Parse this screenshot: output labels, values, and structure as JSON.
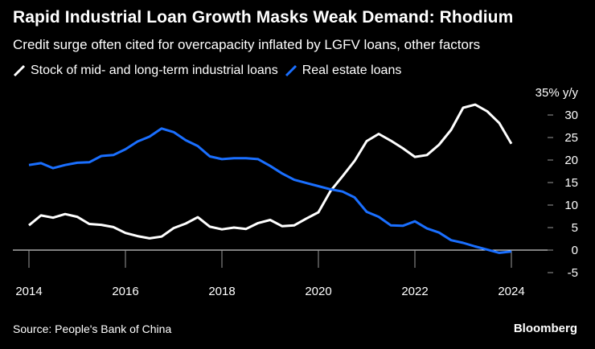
{
  "chart_data": {
    "type": "line",
    "title": "Rapid Industrial Loan Growth Masks Weak Demand: Rhodium",
    "subtitle": "Credit surge often cited for overcapacity inflated by LGFV loans, other factors",
    "ylabel_unit": "y/y",
    "y_unit_label": "35% y/y",
    "ylim": [
      -5,
      35
    ],
    "xlim": [
      2014,
      2024.6
    ],
    "y_ticks": [
      {
        "value": 35,
        "label": "35% y/y"
      },
      {
        "value": 30,
        "label": "30"
      },
      {
        "value": 25,
        "label": "25"
      },
      {
        "value": 20,
        "label": "20"
      },
      {
        "value": 15,
        "label": "15"
      },
      {
        "value": 10,
        "label": "10"
      },
      {
        "value": 5,
        "label": "5"
      },
      {
        "value": 0,
        "label": "0"
      },
      {
        "value": -5,
        "label": "-5"
      }
    ],
    "x_ticks": [
      {
        "value": 2014,
        "label": "2014"
      },
      {
        "value": 2016,
        "label": "2016"
      },
      {
        "value": 2018,
        "label": "2018"
      },
      {
        "value": 2020,
        "label": "2020"
      },
      {
        "value": 2022,
        "label": "2022"
      },
      {
        "value": 2024,
        "label": "2024"
      }
    ],
    "legend_placement": "top-left",
    "grid": false,
    "series": [
      {
        "name": "Stock of mid- and long-term industrial loans",
        "color": "#ffffff",
        "points": [
          [
            2014.0,
            5.5
          ],
          [
            2014.25,
            7.7
          ],
          [
            2014.5,
            7.2
          ],
          [
            2014.75,
            8.0
          ],
          [
            2015.0,
            7.4
          ],
          [
            2015.25,
            5.8
          ],
          [
            2015.5,
            5.6
          ],
          [
            2015.75,
            5.1
          ],
          [
            2016.0,
            3.8
          ],
          [
            2016.25,
            3.1
          ],
          [
            2016.5,
            2.6
          ],
          [
            2016.75,
            3.0
          ],
          [
            2017.0,
            4.9
          ],
          [
            2017.25,
            5.9
          ],
          [
            2017.5,
            7.3
          ],
          [
            2017.75,
            5.2
          ],
          [
            2018.0,
            4.6
          ],
          [
            2018.25,
            5.0
          ],
          [
            2018.5,
            4.7
          ],
          [
            2018.75,
            6.0
          ],
          [
            2019.0,
            6.7
          ],
          [
            2019.25,
            5.3
          ],
          [
            2019.5,
            5.5
          ],
          [
            2019.75,
            7.0
          ],
          [
            2020.0,
            8.4
          ],
          [
            2020.25,
            13.1
          ],
          [
            2020.5,
            16.4
          ],
          [
            2020.75,
            19.8
          ],
          [
            2021.0,
            24.2
          ],
          [
            2021.25,
            25.8
          ],
          [
            2021.5,
            24.3
          ],
          [
            2021.75,
            22.6
          ],
          [
            2022.0,
            20.7
          ],
          [
            2022.25,
            21.1
          ],
          [
            2022.5,
            23.4
          ],
          [
            2022.75,
            26.7
          ],
          [
            2023.0,
            31.6
          ],
          [
            2023.25,
            32.3
          ],
          [
            2023.5,
            30.8
          ],
          [
            2023.75,
            28.2
          ],
          [
            2024.0,
            23.6
          ]
        ]
      },
      {
        "name": "Real estate loans",
        "color": "#1a6fff",
        "points": [
          [
            2014.0,
            18.9
          ],
          [
            2014.25,
            19.3
          ],
          [
            2014.5,
            18.2
          ],
          [
            2014.75,
            18.9
          ],
          [
            2015.0,
            19.4
          ],
          [
            2015.25,
            19.5
          ],
          [
            2015.5,
            20.9
          ],
          [
            2015.75,
            21.1
          ],
          [
            2016.0,
            22.4
          ],
          [
            2016.25,
            24.1
          ],
          [
            2016.5,
            25.2
          ],
          [
            2016.75,
            27.0
          ],
          [
            2017.0,
            26.2
          ],
          [
            2017.25,
            24.4
          ],
          [
            2017.5,
            23.1
          ],
          [
            2017.75,
            20.8
          ],
          [
            2018.0,
            20.2
          ],
          [
            2018.25,
            20.4
          ],
          [
            2018.5,
            20.4
          ],
          [
            2018.75,
            20.2
          ],
          [
            2019.0,
            18.7
          ],
          [
            2019.25,
            17.0
          ],
          [
            2019.5,
            15.6
          ],
          [
            2019.75,
            14.9
          ],
          [
            2020.0,
            14.2
          ],
          [
            2020.25,
            13.5
          ],
          [
            2020.5,
            13.0
          ],
          [
            2020.75,
            11.7
          ],
          [
            2021.0,
            8.5
          ],
          [
            2021.25,
            7.4
          ],
          [
            2021.5,
            5.5
          ],
          [
            2021.75,
            5.4
          ],
          [
            2022.0,
            6.4
          ],
          [
            2022.25,
            4.8
          ],
          [
            2022.5,
            3.9
          ],
          [
            2022.75,
            2.2
          ],
          [
            2023.0,
            1.6
          ],
          [
            2023.25,
            0.8
          ],
          [
            2023.5,
            0.1
          ],
          [
            2023.75,
            -0.6
          ],
          [
            2024.0,
            -0.3
          ]
        ]
      }
    ]
  },
  "footer": {
    "source": "Source: People's Bank of China",
    "brand": "Bloomberg"
  }
}
